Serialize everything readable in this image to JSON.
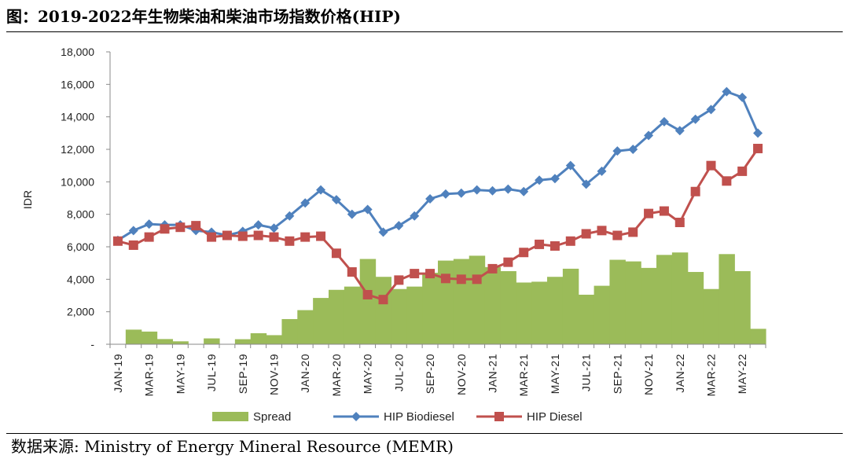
{
  "figure": {
    "title": "图：2019-2022年生物柴油和柴油市场指数价格(HIP)",
    "source": "数据来源: Ministry of Energy Mineral Resource (MEMR)"
  },
  "chart_data": {
    "type": "line",
    "ylabel": "IDR",
    "ylim": [
      0,
      18000
    ],
    "yticks": [
      {
        "value": 0,
        "label": "-"
      },
      {
        "value": 2000,
        "label": "2,000"
      },
      {
        "value": 4000,
        "label": "4,000"
      },
      {
        "value": 6000,
        "label": "6,000"
      },
      {
        "value": 8000,
        "label": "8,000"
      },
      {
        "value": 10000,
        "label": "10,000"
      },
      {
        "value": 12000,
        "label": "12,000"
      },
      {
        "value": 14000,
        "label": "14,000"
      },
      {
        "value": 16000,
        "label": "16,000"
      },
      {
        "value": 18000,
        "label": "18,000"
      }
    ],
    "categories": [
      "JAN-19",
      "FEB-19",
      "MAR-19",
      "APR-19",
      "MAY-19",
      "JUN-19",
      "JUL-19",
      "AUG-19",
      "SEP-19",
      "OCT-19",
      "NOV-19",
      "DEC-19",
      "JAN-20",
      "FEB-20",
      "MAR-20",
      "APR-20",
      "MAY-20",
      "JUN-20",
      "JUL-20",
      "AUG-20",
      "SEP-20",
      "OCT-20",
      "NOV-20",
      "DEC-20",
      "JAN-21",
      "FEB-21",
      "MAR-21",
      "APR-21",
      "MAY-21",
      "JUN-21",
      "JUL-21",
      "AUG-21",
      "SEP-21",
      "OCT-21",
      "NOV-21",
      "DEC-21",
      "JAN-22",
      "FEB-22",
      "MAR-22",
      "APR-22",
      "MAY-22",
      "JUN-22"
    ],
    "x_tick_labels": [
      "JAN-19",
      "MAR-19",
      "MAY-19",
      "JUL-19",
      "SEP-19",
      "NOV-19",
      "JAN-20",
      "MAR-20",
      "MAY-20",
      "JUL-20",
      "SEP-20",
      "NOV-20",
      "JAN-21",
      "MAR-21",
      "MAY-21",
      "JUL-21",
      "SEP-21",
      "NOV-21",
      "JAN-22",
      "MAR-22",
      "MAY-22"
    ],
    "series": [
      {
        "name": "Spread",
        "kind": "area",
        "color": "#9bbb59",
        "values": [
          0,
          900,
          780,
          320,
          180,
          0,
          360,
          0,
          310,
          680,
          560,
          1550,
          2100,
          2850,
          3350,
          3550,
          5250,
          4150,
          3400,
          3550,
          4400,
          5150,
          5250,
          5450,
          4750,
          4500,
          3800,
          3850,
          4150,
          4650,
          3050,
          3600,
          5200,
          5100,
          4700,
          5500,
          5650,
          4450,
          3400,
          5550,
          4500,
          950
        ]
      },
      {
        "name": "HIP Biodiesel",
        "kind": "line",
        "color": "#4f81bd",
        "marker": "diamond",
        "values": [
          6400,
          7000,
          7400,
          7350,
          7350,
          7000,
          6900,
          6700,
          6950,
          7350,
          7150,
          7900,
          8700,
          9500,
          8900,
          8000,
          8300,
          6900,
          7300,
          7900,
          8950,
          9250,
          9300,
          9500,
          9450,
          9550,
          9400,
          10100,
          10200,
          11000,
          9850,
          10650,
          11900,
          12000,
          12850,
          13700,
          13150,
          13850,
          14450,
          15550,
          15200,
          13000
        ]
      },
      {
        "name": "HIP Diesel",
        "kind": "line",
        "color": "#c0504d",
        "marker": "square",
        "values": [
          6350,
          6100,
          6600,
          7100,
          7200,
          7300,
          6600,
          6700,
          6650,
          6700,
          6600,
          6350,
          6600,
          6650,
          5600,
          4450,
          3050,
          2750,
          3950,
          4350,
          4350,
          4050,
          4000,
          4000,
          4650,
          5050,
          5650,
          6150,
          6050,
          6350,
          6800,
          7000,
          6700,
          6900,
          8050,
          8200,
          7500,
          9400,
          11000,
          10050,
          10650,
          12050
        ]
      }
    ],
    "legend_position": "bottom",
    "grid": false
  }
}
